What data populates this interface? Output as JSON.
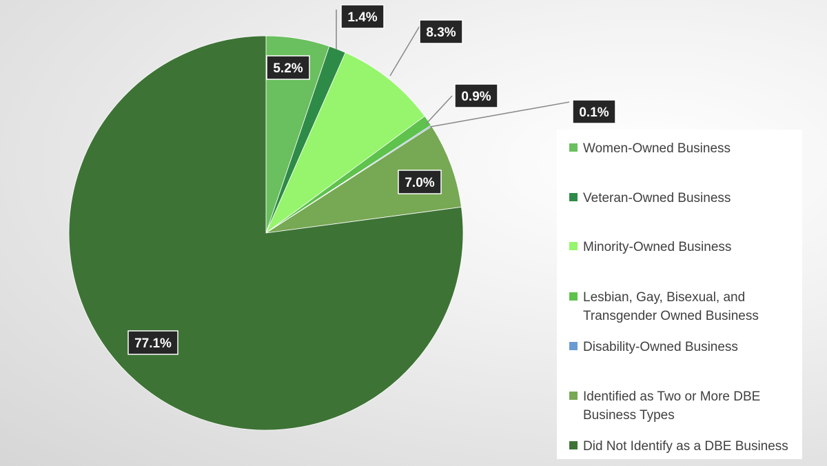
{
  "chart_data": {
    "type": "pie",
    "title": "",
    "start_angle_deg": 0,
    "direction": "clockwise",
    "slices": [
      {
        "name": "Women-Owned Business",
        "value": 5.2,
        "label": "5.2%",
        "color": "#6abf5e"
      },
      {
        "name": "Veteran-Owned Business",
        "value": 1.4,
        "label": "1.4%",
        "color": "#2e8b47"
      },
      {
        "name": "Minority-Owned Business",
        "value": 8.3,
        "label": "8.3%",
        "color": "#96f56c"
      },
      {
        "name": "Lesbian, Gay, Bisexual, and Transgender Owned Business",
        "value": 0.9,
        "label": "0.9%",
        "color": "#5ec24d"
      },
      {
        "name": "Disability-Owned Business",
        "value": 0.1,
        "label": "0.1%",
        "color": "#6a9ad4"
      },
      {
        "name": "Identified as Two or More DBE Business Types",
        "value": 7.0,
        "label": "7.0%",
        "color": "#77a854"
      },
      {
        "name": "Did Not Identify as a DBE Business",
        "value": 77.1,
        "label": "77.1%",
        "color": "#3e7336"
      }
    ],
    "legend": {
      "position": "right",
      "items": [
        {
          "lines": [
            "Women-Owned Business"
          ],
          "color": "#6abf5e"
        },
        {
          "lines": [
            "Veteran-Owned Business"
          ],
          "color": "#2e8b47"
        },
        {
          "lines": [
            "Minority-Owned Business"
          ],
          "color": "#96f56c"
        },
        {
          "lines": [
            "Lesbian, Gay, Bisexual, and",
            "Transgender Owned Business"
          ],
          "color": "#5ec24d"
        },
        {
          "lines": [
            "Disability-Owned Business"
          ],
          "color": "#6a9ad4"
        },
        {
          "lines": [
            "Identified as Two or More DBE",
            "Business Types"
          ],
          "color": "#77a854"
        },
        {
          "lines": [
            "Did Not Identify as a DBE Business"
          ],
          "color": "#3e7336"
        }
      ]
    }
  }
}
